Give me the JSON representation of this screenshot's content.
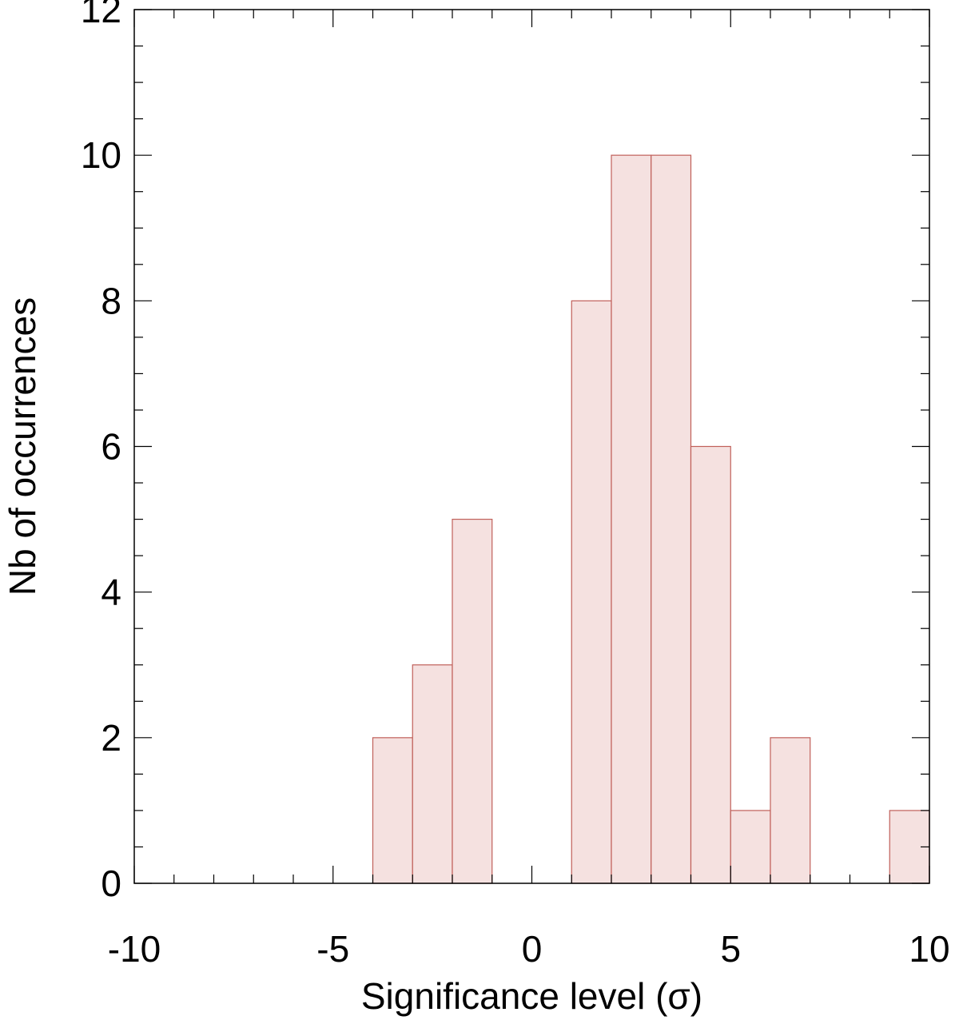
{
  "chart_data": {
    "type": "bar",
    "subtype": "histogram",
    "xlabel": "Significance level (σ)",
    "ylabel": "Nb of occurrences",
    "xlim": [
      -10,
      10
    ],
    "ylim": [
      0,
      12
    ],
    "bin_width": 1,
    "bin_edges": [
      -10,
      -9,
      -8,
      -7,
      -6,
      -5,
      -4,
      -3,
      -2,
      -1,
      0,
      1,
      2,
      3,
      4,
      5,
      6,
      7,
      8,
      9,
      10
    ],
    "values": [
      0,
      0,
      0,
      0,
      0,
      0,
      2,
      3,
      5,
      0,
      0,
      8,
      10,
      10,
      6,
      1,
      2,
      0,
      0,
      1
    ],
    "x_ticks": [
      -10,
      -5,
      0,
      5,
      10
    ],
    "x_tick_labels": [
      "-10",
      "-5",
      "0",
      "5",
      "10"
    ],
    "y_ticks": [
      0,
      2,
      4,
      6,
      8,
      10,
      12
    ],
    "y_tick_labels": [
      "0",
      "2",
      "4",
      "6",
      "8",
      "10",
      "12"
    ],
    "x_minor_step": 1,
    "y_minor_step": 0.5,
    "grid": false,
    "legend": "none",
    "colors": {
      "bar_fill": "#f5e1e0",
      "bar_edge": "#c0605a"
    }
  }
}
